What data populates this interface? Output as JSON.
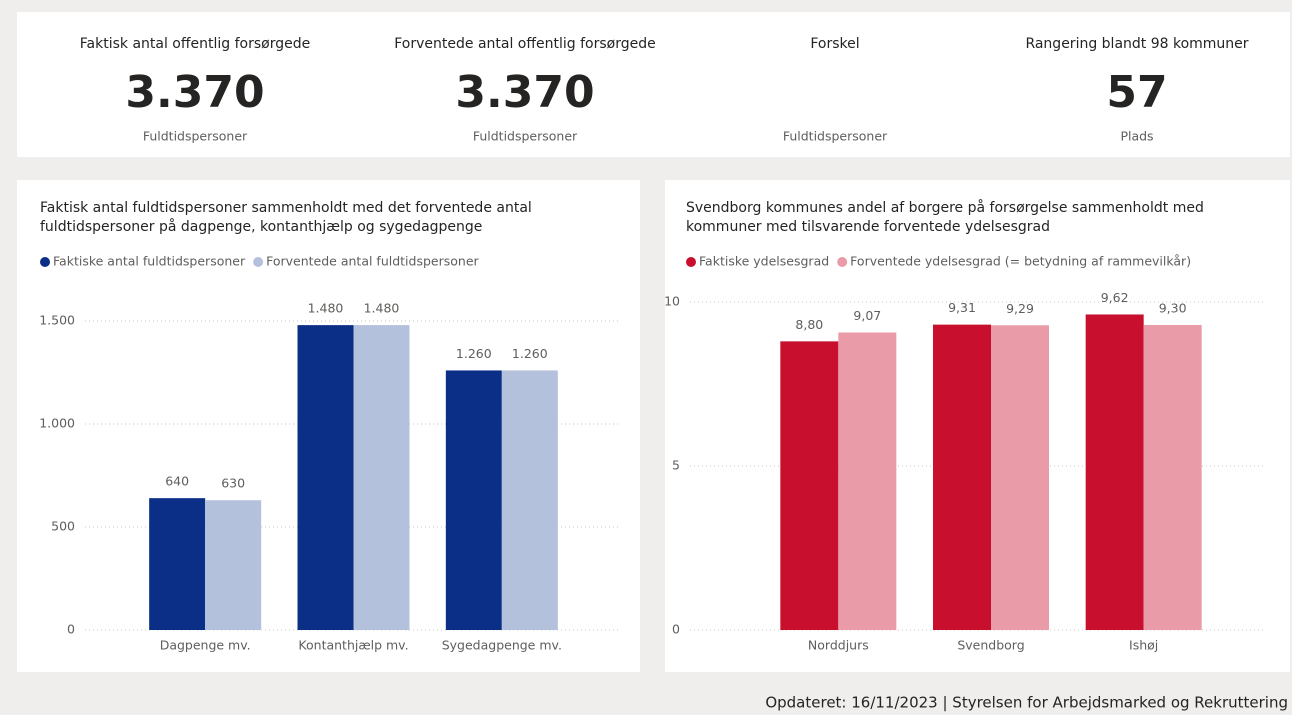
{
  "kpis": [
    {
      "title": "Faktisk antal offentlig forsørgede",
      "value": "3.370",
      "unit": "Fuldtidspersoner"
    },
    {
      "title": "Forventede antal offentlig forsørgede",
      "value": "3.370",
      "unit": "Fuldtidspersoner"
    },
    {
      "title": "Forskel",
      "unit": "Fuldtidspersoner"
    },
    {
      "title": "Rangering blandt 98 kommuner",
      "value": "57",
      "unit": "Plads"
    }
  ],
  "chart_data": [
    {
      "type": "bar",
      "title": [
        "Faktisk antal fuldtidspersoner sammenholdt med det forventede antal",
        "fuldtidspersoner på dagpenge, kontanthjælp og sygedagpenge"
      ],
      "categories": [
        "Dagpenge mv.",
        "Kontanthjælp mv.",
        "Sygedagpenge mv."
      ],
      "series": [
        {
          "name": "Faktiske antal fuldtidspersoner",
          "color": "#0b2f86",
          "values": [
            640,
            1480,
            1260
          ],
          "value_labels": [
            "640",
            "1.480",
            "1.260"
          ]
        },
        {
          "name": "Forventede antal fuldtidspersoner",
          "color": "#b3c1dc",
          "values": [
            630,
            1480,
            1260
          ],
          "value_labels": [
            "630",
            "1.480",
            "1.260"
          ]
        }
      ],
      "ylim": [
        0,
        1500
      ],
      "yticks": [
        0,
        500,
        {
          "value": 1000,
          "label": "1.000"
        },
        {
          "value": 1500,
          "label": "1.500"
        }
      ],
      "grid": true
    },
    {
      "type": "bar",
      "title": [
        "Svendborg kommunes andel af borgere på forsørgelse sammenholdt med",
        "kommuner med tilsvarende forventede ydelsesgrad"
      ],
      "categories": [
        "Norddjurs",
        "Svendborg",
        "Ishøj"
      ],
      "series": [
        {
          "name": "Faktiske ydelsesgrad",
          "color": "#c8102e",
          "values": [
            8.8,
            9.31,
            9.62
          ],
          "value_labels": [
            "8,80",
            "9,31",
            "9,62"
          ]
        },
        {
          "name": "Forventede ydelsesgrad (= betydning af rammevilkår)",
          "color": "#e99ba8",
          "values": [
            9.07,
            9.29,
            9.3
          ],
          "value_labels": [
            "9,07",
            "9,29",
            "9,30"
          ]
        }
      ],
      "ylim": [
        0,
        10
      ],
      "yticks": [
        0,
        5,
        10
      ],
      "grid": true
    }
  ],
  "footer": "Opdateret: 16/11/2023 | Styrelsen for Arbejdsmarked og Rekruttering"
}
